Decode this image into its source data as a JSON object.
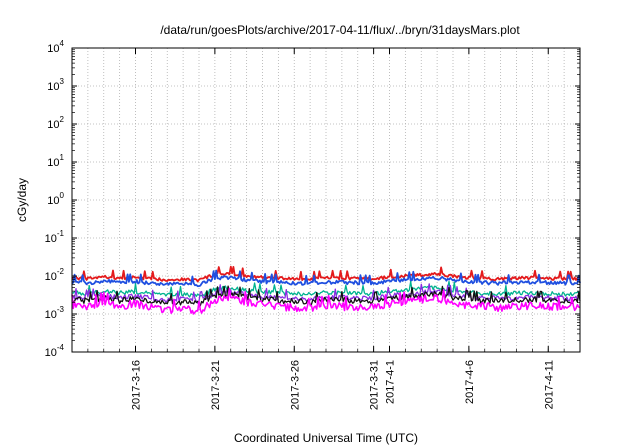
{
  "chart_data": {
    "type": "line",
    "title": "/data/run/goesPlots/archive/2017-04-11/flux/../bryn/31daysMars.plot",
    "xlabel": "Coordinated Universal Time (UTC)",
    "ylabel": "cGy/day",
    "y_scale": "log",
    "ylim": [
      0.0001,
      10000
    ],
    "y_ticks": [
      {
        "base": "10",
        "exp": "-4"
      },
      {
        "base": "10",
        "exp": "-3"
      },
      {
        "base": "10",
        "exp": "-2"
      },
      {
        "base": "10",
        "exp": "-1"
      },
      {
        "base": "10",
        "exp": "0"
      },
      {
        "base": "10",
        "exp": "1"
      },
      {
        "base": "10",
        "exp": "2"
      },
      {
        "base": "10",
        "exp": "3"
      },
      {
        "base": "10",
        "exp": "4"
      }
    ],
    "xlim": [
      "2017-03-12",
      "2017-04-13"
    ],
    "x_ticks": [
      {
        "label": "2017-3-16",
        "date": "2017-03-16"
      },
      {
        "label": "2017-3-21",
        "date": "2017-03-21"
      },
      {
        "label": "2017-3-26",
        "date": "2017-03-26"
      },
      {
        "label": "2017-3-31",
        "date": "2017-03-31"
      },
      {
        "label": "2017-4-1",
        "date": "2017-04-01"
      },
      {
        "label": "2017-4-6",
        "date": "2017-04-06"
      },
      {
        "label": "2017-4-11",
        "date": "2017-04-11"
      }
    ],
    "grid": true,
    "legend": "none",
    "x": [
      "2017-03-12",
      "2017-03-13",
      "2017-03-14",
      "2017-03-15",
      "2017-03-16",
      "2017-03-17",
      "2017-03-18",
      "2017-03-19",
      "2017-03-20",
      "2017-03-21",
      "2017-03-22",
      "2017-03-23",
      "2017-03-24",
      "2017-03-25",
      "2017-03-26",
      "2017-03-27",
      "2017-03-28",
      "2017-03-29",
      "2017-03-30",
      "2017-03-31",
      "2017-04-01",
      "2017-04-02",
      "2017-04-03",
      "2017-04-04",
      "2017-04-05",
      "2017-04-06",
      "2017-04-07",
      "2017-04-08",
      "2017-04-09",
      "2017-04-10",
      "2017-04-11",
      "2017-04-12",
      "2017-04-13"
    ],
    "series": [
      {
        "color": "#e41a1c",
        "values": [
          0.009,
          0.0085,
          0.0095,
          0.0088,
          0.0092,
          0.0084,
          0.008,
          0.0082,
          0.0078,
          0.011,
          0.0115,
          0.01,
          0.0092,
          0.0088,
          0.0085,
          0.0082,
          0.009,
          0.0088,
          0.0086,
          0.0084,
          0.0095,
          0.01,
          0.0108,
          0.0112,
          0.01,
          0.009,
          0.0086,
          0.0084,
          0.0088,
          0.009,
          0.0086,
          0.0085,
          0.0084
        ]
      },
      {
        "color": "#1f4fe0",
        "values": [
          0.007,
          0.0066,
          0.0074,
          0.0068,
          0.0072,
          0.0065,
          0.0062,
          0.0064,
          0.006,
          0.0088,
          0.0092,
          0.008,
          0.0072,
          0.0069,
          0.0066,
          0.0064,
          0.007,
          0.0068,
          0.0067,
          0.0065,
          0.0074,
          0.0079,
          0.0086,
          0.009,
          0.0079,
          0.007,
          0.0067,
          0.0065,
          0.0069,
          0.007,
          0.0067,
          0.0066,
          0.0065
        ]
      },
      {
        "color": "#00b38f",
        "values": [
          0.0038,
          0.0034,
          0.004,
          0.0036,
          0.0039,
          0.0034,
          0.0031,
          0.0033,
          0.003,
          0.0045,
          0.005,
          0.0043,
          0.0038,
          0.0036,
          0.0034,
          0.0033,
          0.0037,
          0.0036,
          0.0035,
          0.0034,
          0.004,
          0.0043,
          0.0048,
          0.005,
          0.0043,
          0.0037,
          0.0035,
          0.0034,
          0.0036,
          0.0037,
          0.0035,
          0.0034,
          0.0034
        ]
      },
      {
        "color": "#8a2be2",
        "values": [
          0.0029,
          0.0026,
          0.0031,
          0.0027,
          0.003,
          0.0026,
          0.0023,
          0.0025,
          0.0022,
          0.0035,
          0.0038,
          0.0033,
          0.0029,
          0.0027,
          0.0026,
          0.0025,
          0.0028,
          0.0027,
          0.0026,
          0.0026,
          0.0031,
          0.0033,
          0.0037,
          0.0039,
          0.0033,
          0.0028,
          0.0027,
          0.0026,
          0.0027,
          0.0028,
          0.0027,
          0.0026,
          0.0026
        ]
      },
      {
        "color": "#111111",
        "values": [
          0.0025,
          0.0022,
          0.0027,
          0.0023,
          0.0026,
          0.0022,
          0.002,
          0.0021,
          0.0019,
          0.003,
          0.0033,
          0.0028,
          0.0025,
          0.0023,
          0.0022,
          0.0021,
          0.0024,
          0.0023,
          0.0022,
          0.0022,
          0.0026,
          0.0028,
          0.0032,
          0.0034,
          0.0028,
          0.0024,
          0.0023,
          0.0022,
          0.0023,
          0.0024,
          0.0023,
          0.0022,
          0.0022
        ]
      },
      {
        "color": "#ff00ff",
        "values": [
          0.0018,
          0.0015,
          0.0021,
          0.0016,
          0.0019,
          0.0015,
          0.0013,
          0.0014,
          0.0012,
          0.0023,
          0.0026,
          0.0021,
          0.0018,
          0.0016,
          0.0015,
          0.0014,
          0.0017,
          0.0016,
          0.0015,
          0.0015,
          0.0019,
          0.0021,
          0.0025,
          0.0027,
          0.0021,
          0.0017,
          0.0016,
          0.0015,
          0.0016,
          0.0017,
          0.0016,
          0.0015,
          0.0015
        ]
      }
    ]
  }
}
